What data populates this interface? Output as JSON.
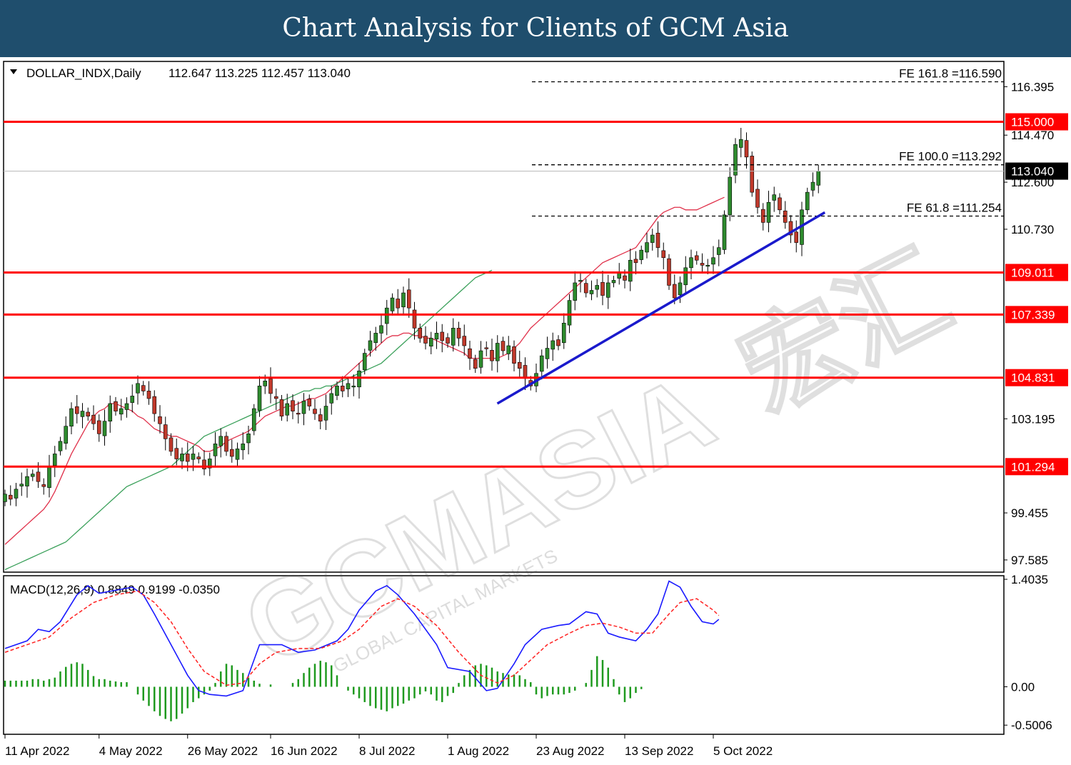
{
  "banner": {
    "title": "Chart Analysis for Clients of GCM Asia"
  },
  "watermark": {
    "brand": "GCMASIA",
    "chinese": "宏汇",
    "tagline": "GLOBAL CAPITAL MARKETS"
  },
  "colors": {
    "bull": "#2e8b2e",
    "bear": "#c0392b",
    "wick": "#000000",
    "level": "#ff0000",
    "ma_fast": "#e0304a",
    "ma_slow": "#3aa05a",
    "trend": "#1a1acc",
    "macd": "#1a1aff",
    "signal": "#ff2020",
    "hist": "#1f9a1f",
    "banner": "#1f4e6d"
  },
  "chart_data": [
    {
      "type": "candlestick",
      "title": "DOLLAR_INDX,Daily",
      "ohlc_text": "112.647 113.225 112.457 113.040",
      "ylim": [
        97.1,
        117.4
      ],
      "y_ticks": [
        "116.395",
        "114.470",
        "112.600",
        "110.730",
        "103.195",
        "99.455",
        "97.585"
      ],
      "x_ticks": [
        {
          "index": 0,
          "label": "11 Apr 2022"
        },
        {
          "index": 17,
          "label": "4 May 2022"
        },
        {
          "index": 33,
          "label": "26 May 2022"
        },
        {
          "index": 48,
          "label": "16 Jun 2022"
        },
        {
          "index": 64,
          "label": "8 Jul 2022"
        },
        {
          "index": 80,
          "label": "1 Aug 2022"
        },
        {
          "index": 96,
          "label": "23 Aug 2022"
        },
        {
          "index": 112,
          "label": "13 Sep 2022"
        },
        {
          "index": 128,
          "label": "5 Oct 2022"
        }
      ],
      "closes": [
        100.2,
        100.0,
        100.4,
        100.6,
        100.9,
        101.0,
        100.7,
        100.5,
        101.3,
        101.8,
        102.3,
        102.9,
        103.6,
        103.4,
        103.5,
        103.3,
        103.0,
        102.6,
        103.1,
        103.8,
        103.5,
        103.6,
        103.8,
        104.1,
        104.6,
        104.3,
        104.0,
        103.4,
        103.0,
        102.4,
        101.9,
        101.6,
        101.8,
        101.5,
        101.8,
        101.6,
        101.2,
        101.6,
        102.2,
        102.5,
        101.9,
        101.7,
        102.0,
        102.2,
        102.6,
        103.6,
        104.5,
        104.7,
        104.2,
        104.0,
        103.3,
        103.8,
        103.5,
        103.4,
        103.9,
        103.7,
        103.4,
        103.1,
        103.7,
        104.2,
        104.5,
        104.3,
        104.6,
        104.5,
        105.1,
        105.8,
        106.3,
        106.6,
        106.9,
        107.6,
        108.0,
        107.6,
        108.2,
        107.6,
        106.8,
        106.4,
        106.2,
        106.4,
        106.6,
        106.3,
        106.2,
        106.8,
        106.4,
        106.1,
        105.6,
        105.2,
        105.9,
        106.0,
        105.5,
        106.2,
        105.9,
        106.1,
        105.4,
        105.2,
        104.8,
        104.5,
        105.0,
        105.7,
        106.0,
        106.3,
        106.1,
        107.0,
        107.9,
        108.6,
        108.7,
        108.2,
        108.3,
        108.5,
        108.1,
        108.6,
        108.7,
        109.0,
        108.7,
        109.5,
        109.4,
        109.9,
        110.2,
        110.5,
        110.0,
        109.6,
        108.5,
        108.0,
        108.6,
        109.2,
        109.6,
        109.5,
        109.3,
        109.3,
        109.6,
        110.0,
        111.3,
        112.8,
        114.1,
        114.3,
        113.6,
        112.2,
        111.6,
        111.0,
        111.8,
        112.1,
        111.5,
        111.0,
        110.5,
        110.2,
        111.5,
        112.2,
        112.6,
        113.04
      ],
      "ma_fast": [
        98.2,
        98.4,
        98.6,
        98.8,
        99.0,
        99.2,
        99.4,
        99.6,
        99.9,
        100.3,
        100.8,
        101.3,
        101.8,
        102.2,
        102.6,
        103.0,
        103.3,
        103.5,
        103.6,
        103.8,
        103.8,
        103.7,
        103.6,
        103.5,
        103.3,
        103.2,
        103.0,
        102.8,
        102.7,
        102.6,
        102.5,
        102.5,
        102.4,
        102.3,
        102.2,
        102.1,
        101.9,
        101.9,
        102.0,
        102.1,
        102.3,
        102.4,
        102.5,
        102.6,
        102.7,
        102.9,
        103.1,
        103.3,
        103.4,
        103.5,
        103.6,
        103.7,
        103.7,
        103.8,
        103.9,
        104.0,
        104.0,
        104.1,
        104.2,
        104.4,
        104.6,
        104.8,
        105.0,
        105.2,
        105.4,
        105.6,
        105.8,
        106.0,
        106.2,
        106.4,
        106.5,
        106.5,
        106.6,
        106.6,
        106.5,
        106.5,
        106.4,
        106.4,
        106.3,
        106.2,
        106.1,
        106.0,
        105.9,
        105.8,
        105.6,
        105.6,
        105.6,
        105.6,
        105.6,
        105.6,
        105.7,
        105.8,
        106.0,
        106.2,
        106.5,
        106.8,
        107.0,
        107.2,
        107.4,
        107.6,
        107.8,
        108.0,
        108.2,
        108.4,
        108.6,
        108.8,
        109.0,
        109.2,
        109.4,
        109.5,
        109.6,
        109.7,
        109.8,
        109.9,
        110.0,
        110.3,
        110.6,
        110.9,
        111.2,
        111.4,
        111.5,
        111.6,
        111.6,
        111.5,
        111.5,
        111.5,
        111.6,
        111.7,
        111.8,
        111.9,
        112.0
      ],
      "ma_slow": [
        97.2,
        97.3,
        97.4,
        97.5,
        97.6,
        97.7,
        97.8,
        97.9,
        98.0,
        98.1,
        98.2,
        98.3,
        98.5,
        98.7,
        98.9,
        99.1,
        99.3,
        99.5,
        99.7,
        99.9,
        100.1,
        100.3,
        100.5,
        100.6,
        100.7,
        100.8,
        100.9,
        101.0,
        101.1,
        101.2,
        101.3,
        101.5,
        101.7,
        101.9,
        102.1,
        102.3,
        102.5,
        102.6,
        102.7,
        102.8,
        102.9,
        103.0,
        103.1,
        103.2,
        103.3,
        103.4,
        103.5,
        103.6,
        103.7,
        103.8,
        103.9,
        104.0,
        104.1,
        104.2,
        104.3,
        104.3,
        104.4,
        104.4,
        104.5,
        104.5,
        104.6,
        104.7,
        104.8,
        104.9,
        105.0,
        105.1,
        105.2,
        105.3,
        105.4,
        105.6,
        105.8,
        106.0,
        106.2,
        106.4,
        106.6,
        106.8,
        107.0,
        107.2,
        107.4,
        107.6,
        107.8,
        108.0,
        108.2,
        108.4,
        108.6,
        108.8,
        108.9,
        109.0,
        109.1
      ],
      "ma_slow_start": 41,
      "levels": [
        {
          "value": 115.0,
          "label": "115.000"
        },
        {
          "value": 109.011,
          "label": "109.011"
        },
        {
          "value": 107.339,
          "label": "107.339"
        },
        {
          "value": 104.831,
          "label": "104.831"
        },
        {
          "value": 101.294,
          "label": "101.294"
        }
      ],
      "current_price": {
        "value": 113.04,
        "label": "113.040"
      },
      "fibonacci": [
        {
          "value": 116.59,
          "label": "FE 161.8 =116.590"
        },
        {
          "value": 113.292,
          "label": "FE 100.0 =113.292"
        },
        {
          "value": 111.254,
          "label": "FE 61.8 =111.254"
        }
      ],
      "trendline": {
        "start": [
          82,
          103.8
        ],
        "end": [
          135,
          111.4
        ]
      }
    },
    {
      "type": "macd",
      "title": "MACD(12,26,9) 0.8849 0.9199 -0.0350",
      "ylim": [
        -0.62,
        1.45
      ],
      "y_ticks": [
        "1.4035",
        "0.00",
        "-0.5006"
      ],
      "macd_points": [
        [
          0,
          0.5
        ],
        [
          4,
          0.6
        ],
        [
          6,
          0.75
        ],
        [
          8,
          0.72
        ],
        [
          10,
          0.85
        ],
        [
          13,
          1.2
        ],
        [
          15,
          1.32
        ],
        [
          17,
          1.22
        ],
        [
          20,
          1.26
        ],
        [
          23,
          1.3
        ],
        [
          25,
          1.2
        ],
        [
          27,
          0.95
        ],
        [
          30,
          0.55
        ],
        [
          33,
          0.15
        ],
        [
          35,
          -0.05
        ],
        [
          37,
          -0.1
        ],
        [
          40,
          -0.12
        ],
        [
          43,
          -0.05
        ],
        [
          46,
          0.55
        ],
        [
          48,
          0.55
        ],
        [
          50,
          0.55
        ],
        [
          53,
          0.45
        ],
        [
          56,
          0.48
        ],
        [
          60,
          0.6
        ],
        [
          62,
          0.75
        ],
        [
          64,
          1.0
        ],
        [
          67,
          1.25
        ],
        [
          69,
          1.32
        ],
        [
          71,
          1.2
        ],
        [
          74,
          0.95
        ],
        [
          78,
          0.55
        ],
        [
          80,
          0.25
        ],
        [
          84,
          0.2
        ],
        [
          87,
          -0.05
        ],
        [
          89,
          -0.02
        ],
        [
          92,
          0.3
        ],
        [
          94,
          0.55
        ],
        [
          97,
          0.75
        ],
        [
          100,
          0.8
        ],
        [
          102,
          0.82
        ],
        [
          105,
          0.98
        ],
        [
          107,
          0.95
        ],
        [
          109,
          0.7
        ],
        [
          111,
          0.65
        ],
        [
          114,
          0.6
        ],
        [
          116,
          0.75
        ],
        [
          118,
          0.95
        ],
        [
          120,
          1.38
        ],
        [
          122,
          1.3
        ],
        [
          124,
          1.05
        ],
        [
          126,
          0.85
        ],
        [
          128,
          0.82
        ],
        [
          129,
          0.88
        ]
      ],
      "signal_points": [
        [
          0,
          0.45
        ],
        [
          4,
          0.55
        ],
        [
          8,
          0.65
        ],
        [
          12,
          0.9
        ],
        [
          16,
          1.1
        ],
        [
          20,
          1.2
        ],
        [
          24,
          1.25
        ],
        [
          27,
          1.1
        ],
        [
          30,
          0.85
        ],
        [
          33,
          0.5
        ],
        [
          36,
          0.2
        ],
        [
          40,
          0.02
        ],
        [
          43,
          0.05
        ],
        [
          46,
          0.3
        ],
        [
          49,
          0.45
        ],
        [
          53,
          0.5
        ],
        [
          57,
          0.5
        ],
        [
          61,
          0.6
        ],
        [
          64,
          0.75
        ],
        [
          68,
          1.05
        ],
        [
          71,
          1.15
        ],
        [
          74,
          1.05
        ],
        [
          78,
          0.8
        ],
        [
          82,
          0.45
        ],
        [
          86,
          0.15
        ],
        [
          89,
          0.05
        ],
        [
          92,
          0.15
        ],
        [
          95,
          0.35
        ],
        [
          98,
          0.55
        ],
        [
          102,
          0.7
        ],
        [
          105,
          0.8
        ],
        [
          108,
          0.83
        ],
        [
          111,
          0.78
        ],
        [
          114,
          0.7
        ],
        [
          117,
          0.7
        ],
        [
          120,
          0.95
        ],
        [
          122,
          1.1
        ],
        [
          125,
          1.15
        ],
        [
          128,
          1.0
        ],
        [
          129,
          0.93
        ]
      ],
      "histogram": [
        0.08,
        0.08,
        0.08,
        0.08,
        0.08,
        0.1,
        0.1,
        0.08,
        0.1,
        0.12,
        0.2,
        0.26,
        0.3,
        0.32,
        0.3,
        0.22,
        0.14,
        0.1,
        0.1,
        0.08,
        0.07,
        0.06,
        0.06,
        0.0,
        -0.1,
        -0.18,
        -0.25,
        -0.32,
        -0.38,
        -0.42,
        -0.45,
        -0.42,
        -0.35,
        -0.28,
        -0.2,
        -0.15,
        -0.1,
        -0.05,
        0.05,
        0.2,
        0.3,
        0.28,
        0.22,
        0.18,
        0.12,
        0.08,
        0.04,
        0.0,
        0.03,
        0.0,
        0.0,
        0.0,
        0.05,
        0.1,
        0.18,
        0.25,
        0.3,
        0.34,
        0.32,
        0.28,
        0.15,
        0.0,
        -0.05,
        -0.1,
        -0.15,
        -0.2,
        -0.25,
        -0.28,
        -0.3,
        -0.32,
        -0.28,
        -0.25,
        -0.22,
        -0.18,
        -0.15,
        -0.1,
        -0.06,
        -0.1,
        -0.18,
        -0.2,
        -0.12,
        -0.08,
        0.05,
        0.15,
        0.22,
        0.28,
        0.3,
        0.28,
        0.25,
        0.2,
        0.18,
        0.16,
        0.16,
        0.15,
        0.1,
        0.06,
        -0.1,
        -0.15,
        -0.12,
        -0.1,
        -0.1,
        -0.1,
        -0.08,
        -0.05,
        0.0,
        0.05,
        0.22,
        0.4,
        0.35,
        0.25,
        0.1,
        -0.1,
        -0.2,
        -0.15,
        -0.08,
        -0.03
      ]
    }
  ]
}
